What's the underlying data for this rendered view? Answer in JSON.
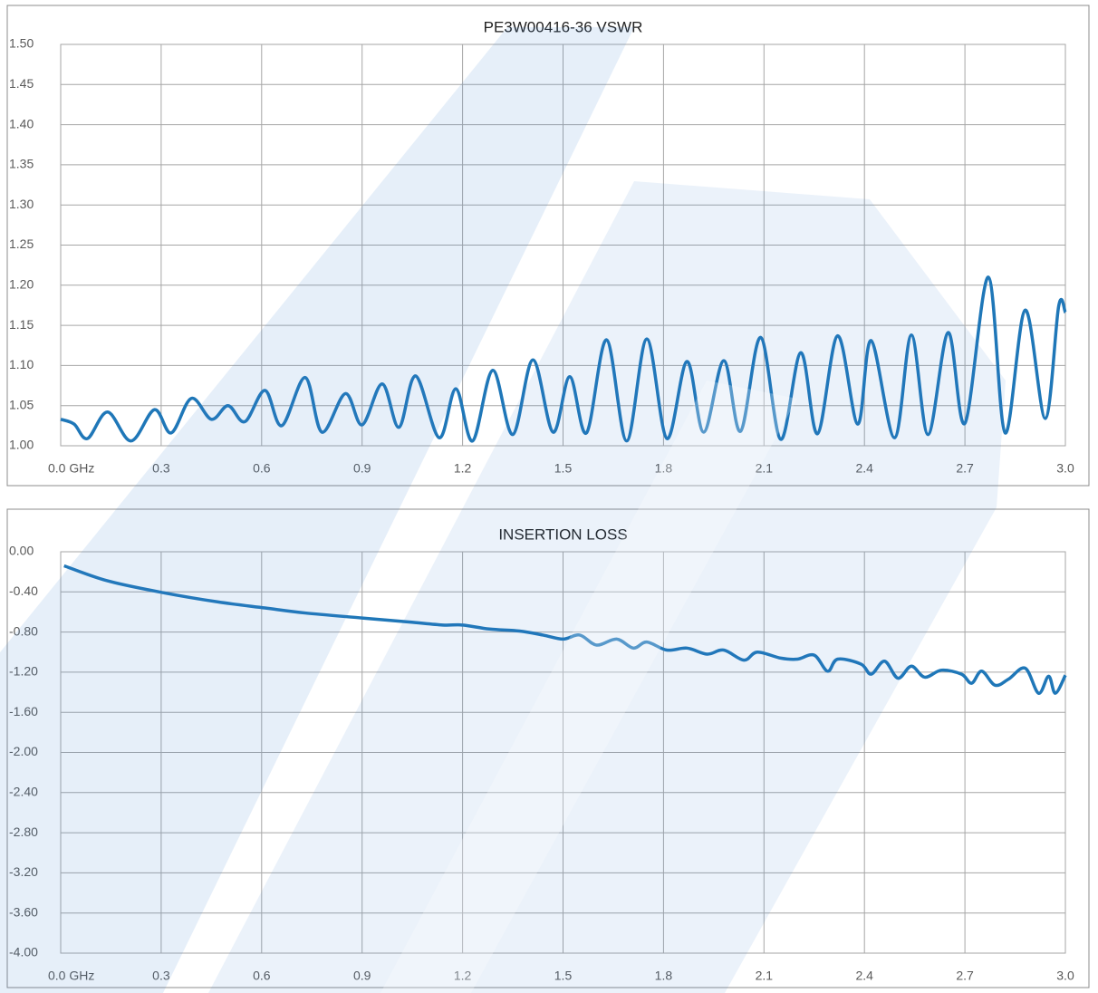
{
  "chart_data": [
    {
      "type": "line",
      "title": "PE3W00416-36 VSWR",
      "x": [
        0.0,
        0.04,
        0.08,
        0.14,
        0.21,
        0.28,
        0.33,
        0.39,
        0.45,
        0.5,
        0.55,
        0.61,
        0.66,
        0.73,
        0.78,
        0.85,
        0.9,
        0.96,
        1.01,
        1.06,
        1.13,
        1.18,
        1.23,
        1.29,
        1.35,
        1.41,
        1.47,
        1.52,
        1.57,
        1.63,
        1.69,
        1.75,
        1.81,
        1.87,
        1.92,
        1.98,
        2.03,
        2.09,
        2.15,
        2.21,
        2.26,
        2.32,
        2.38,
        2.42,
        2.49,
        2.54,
        2.59,
        2.65,
        2.7,
        2.77,
        2.82,
        2.88,
        2.94,
        2.98,
        3.0
      ],
      "series": [
        {
          "name": "VSWR",
          "color": "#1f77b8",
          "values": [
            1.033,
            1.027,
            1.009,
            1.042,
            1.006,
            1.045,
            1.016,
            1.059,
            1.033,
            1.05,
            1.03,
            1.069,
            1.025,
            1.085,
            1.017,
            1.065,
            1.026,
            1.077,
            1.023,
            1.087,
            1.01,
            1.071,
            1.006,
            1.094,
            1.014,
            1.107,
            1.017,
            1.086,
            1.016,
            1.132,
            1.006,
            1.133,
            1.009,
            1.105,
            1.017,
            1.106,
            1.018,
            1.135,
            1.008,
            1.116,
            1.015,
            1.137,
            1.027,
            1.131,
            1.01,
            1.138,
            1.014,
            1.141,
            1.028,
            1.21,
            1.016,
            1.169,
            1.034,
            1.174,
            1.166
          ]
        }
      ],
      "xlim": [
        0,
        3
      ],
      "xticks": [
        {
          "value": 0,
          "label": "0.0  GHz"
        },
        0.3,
        0.6,
        0.9,
        1.2,
        1.5,
        1.8,
        2.1,
        2.4,
        2.7,
        {
          "value": 3,
          "label": "3.0"
        }
      ],
      "ylim": [
        1,
        1.5
      ],
      "yticks": [
        {
          "value": 1,
          "label": "1.00"
        },
        {
          "value": 1.05,
          "label": "1.05"
        },
        {
          "value": 1.1,
          "label": "1.10"
        },
        {
          "value": 1.15,
          "label": "1.15"
        },
        {
          "value": 1.2,
          "label": "1.20"
        },
        {
          "value": 1.25,
          "label": "1.25"
        },
        {
          "value": 1.3,
          "label": "1.30"
        },
        {
          "value": 1.35,
          "label": "1.35"
        },
        {
          "value": 1.4,
          "label": "1.40"
        },
        {
          "value": 1.45,
          "label": "1.45"
        },
        {
          "value": 1.5,
          "label": "1.50"
        }
      ],
      "grid": true
    },
    {
      "type": "line",
      "title": "INSERTION LOSS",
      "x": [
        0.01,
        0.14,
        0.31,
        0.47,
        0.61,
        0.73,
        0.9,
        1.04,
        1.14,
        1.2,
        1.28,
        1.37,
        1.44,
        1.5,
        1.55,
        1.6,
        1.66,
        1.71,
        1.75,
        1.81,
        1.87,
        1.93,
        1.98,
        2.04,
        2.08,
        2.15,
        2.2,
        2.25,
        2.29,
        2.32,
        2.39,
        2.42,
        2.46,
        2.5,
        2.54,
        2.58,
        2.63,
        2.69,
        2.72,
        2.75,
        2.79,
        2.83,
        2.88,
        2.92,
        2.95,
        2.97,
        3.0
      ],
      "series": [
        {
          "name": "INSERTION LOSS",
          "color": "#1f77b8",
          "values": [
            -0.14,
            -0.29,
            -0.41,
            -0.5,
            -0.56,
            -0.61,
            -0.66,
            -0.7,
            -0.73,
            -0.73,
            -0.77,
            -0.79,
            -0.83,
            -0.87,
            -0.83,
            -0.93,
            -0.87,
            -0.96,
            -0.9,
            -0.98,
            -0.96,
            -1.02,
            -0.98,
            -1.08,
            -1.0,
            -1.06,
            -1.07,
            -1.03,
            -1.19,
            -1.07,
            -1.12,
            -1.22,
            -1.09,
            -1.26,
            -1.14,
            -1.25,
            -1.18,
            -1.22,
            -1.31,
            -1.19,
            -1.33,
            -1.27,
            -1.16,
            -1.41,
            -1.24,
            -1.41,
            -1.23
          ]
        }
      ],
      "xlim": [
        0,
        3
      ],
      "xticks": [
        {
          "value": 0,
          "label": "0.0 GHz"
        },
        0.3,
        0.6,
        0.9,
        1.2,
        1.5,
        1.8,
        2.1,
        2.4,
        2.7,
        {
          "value": 3,
          "label": "3.0"
        }
      ],
      "ylim": [
        -4,
        0
      ],
      "yticks": [
        {
          "value": -4,
          "label": "-4.00"
        },
        {
          "value": -3.6,
          "label": "-3.60"
        },
        {
          "value": -3.2,
          "label": "-3.20"
        },
        {
          "value": -2.8,
          "label": "-2.80"
        },
        {
          "value": -2.4,
          "label": "-2.40"
        },
        {
          "value": -2,
          "label": "-2.00"
        },
        {
          "value": -1.6,
          "label": "-1.60"
        },
        {
          "value": -1.2,
          "label": "-1.20"
        },
        {
          "value": -0.8,
          "label": "-0.80"
        },
        {
          "value": -0.4,
          "label": "-0.40"
        },
        {
          "value": 0,
          "label": "0.00"
        }
      ],
      "grid": true
    }
  ]
}
